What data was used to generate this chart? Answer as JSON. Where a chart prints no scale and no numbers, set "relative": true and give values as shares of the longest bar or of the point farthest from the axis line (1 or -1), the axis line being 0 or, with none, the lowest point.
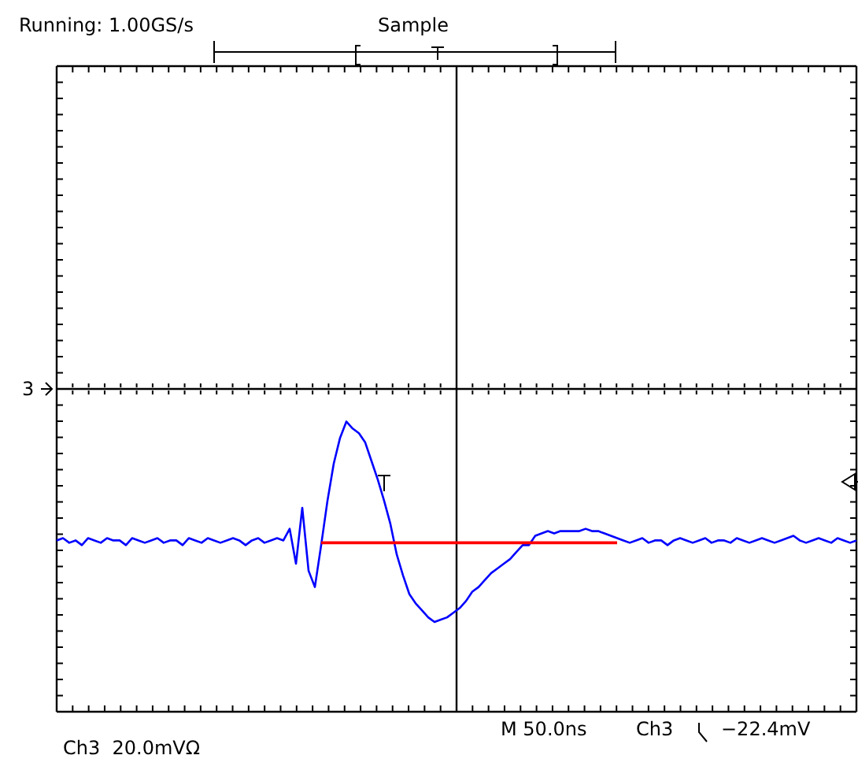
{
  "chart_data": {
    "type": "line",
    "title": "Running: 1.00GS/s",
    "subtitle": "Sample",
    "relative": true,
    "grid": true,
    "marker": "none",
    "line_style": "solid",
    "annotations": [
      "Ch3  20.0mVΩ",
      "M 50.0ns",
      "Ch3",
      "−22.4mV",
      "3"
    ],
    "categories": [
      null,
      null,
      null,
      null,
      null,
      null,
      null,
      null,
      null,
      null,
      null,
      null,
      null,
      null,
      null,
      null,
      null,
      null,
      null,
      null,
      null,
      null,
      null,
      null,
      null,
      null,
      null,
      null,
      null,
      null,
      null,
      null,
      null,
      null,
      null,
      null,
      null,
      null,
      null,
      null,
      null,
      null,
      null,
      null,
      null,
      null,
      null,
      null,
      null,
      null,
      null,
      null,
      null,
      null,
      null,
      null,
      null,
      null,
      null,
      null,
      null,
      null,
      null,
      null,
      null,
      null,
      null,
      null,
      null,
      null,
      null,
      null,
      null,
      null,
      null,
      null,
      null,
      null,
      null,
      null,
      null,
      null,
      null,
      null,
      null,
      null,
      null,
      null,
      null,
      null,
      null,
      null,
      null,
      null,
      null,
      null,
      null,
      null,
      null,
      null,
      null,
      null,
      null,
      null,
      null,
      null,
      null,
      null,
      null,
      null,
      null,
      null,
      null,
      null,
      null,
      null,
      null,
      null,
      null,
      null,
      null,
      null,
      null,
      null,
      null,
      null,
      null,
      null
    ],
    "series": [
      {
        "color": "#0000ff",
        "values": [
          -0.65,
          -0.64,
          -0.66,
          -0.65,
          -0.67,
          -0.64,
          -0.65,
          -0.66,
          -0.64,
          -0.65,
          -0.65,
          -0.67,
          -0.64,
          -0.65,
          -0.66,
          -0.65,
          -0.64,
          -0.66,
          -0.65,
          -0.65,
          -0.67,
          -0.64,
          -0.65,
          -0.66,
          -0.64,
          -0.65,
          -0.66,
          -0.65,
          -0.64,
          -0.65,
          -0.67,
          -0.65,
          -0.64,
          -0.66,
          -0.65,
          -0.64,
          -0.65,
          -0.6,
          -0.75,
          -0.51,
          -0.78,
          -0.85,
          -0.67,
          -0.48,
          -0.32,
          -0.21,
          -0.14,
          -0.17,
          -0.19,
          -0.23,
          -0.31,
          -0.39,
          -0.48,
          -0.58,
          -0.71,
          -0.8,
          -0.88,
          -0.92,
          -0.95,
          -0.98,
          -1.0,
          -0.99,
          -0.98,
          -0.96,
          -0.94,
          -0.91,
          -0.87,
          -0.85,
          -0.82,
          -0.79,
          -0.77,
          -0.75,
          -0.73,
          -0.7,
          -0.67,
          -0.67,
          -0.63,
          -0.62,
          -0.61,
          -0.62,
          -0.61,
          -0.61,
          -0.61,
          -0.61,
          -0.6,
          -0.61,
          -0.61,
          -0.62,
          -0.63,
          -0.64,
          -0.65,
          -0.66,
          -0.65,
          -0.64,
          -0.66,
          -0.65,
          -0.65,
          -0.67,
          -0.65,
          -0.64,
          -0.65,
          -0.66,
          -0.65,
          -0.64,
          -0.66,
          -0.65,
          -0.65,
          -0.66,
          -0.64,
          -0.65,
          -0.66,
          -0.65,
          -0.64,
          -0.65,
          -0.66,
          -0.65,
          -0.64,
          -0.63,
          -0.65,
          -0.66,
          -0.65,
          -0.64,
          -0.65,
          -0.66,
          -0.64,
          -0.65,
          -0.66,
          -0.65
        ]
      },
      {
        "color": "#ff0000",
        "values": [
          null,
          null,
          null,
          null,
          null,
          null,
          null,
          null,
          null,
          null,
          null,
          null,
          null,
          null,
          null,
          null,
          null,
          null,
          null,
          null,
          null,
          null,
          null,
          null,
          null,
          null,
          null,
          null,
          null,
          null,
          null,
          null,
          null,
          null,
          null,
          null,
          null,
          null,
          null,
          null,
          null,
          null,
          -0.66,
          -0.66,
          -0.66,
          -0.66,
          -0.66,
          -0.66,
          -0.66,
          -0.66,
          -0.66,
          -0.66,
          -0.66,
          -0.66,
          -0.66,
          -0.66,
          -0.66,
          -0.66,
          -0.66,
          -0.66,
          -0.66,
          -0.66,
          -0.66,
          -0.66,
          -0.66,
          -0.66,
          -0.66,
          -0.66,
          -0.66,
          -0.66,
          -0.66,
          -0.66,
          -0.66,
          -0.66,
          -0.66,
          -0.66,
          -0.66,
          -0.66,
          -0.66,
          -0.66,
          -0.66,
          -0.66,
          -0.66,
          -0.66,
          -0.66,
          -0.66,
          -0.66,
          -0.66,
          -0.66,
          -0.66,
          null,
          null,
          null,
          null,
          null,
          null,
          null,
          null,
          null,
          null,
          null,
          null,
          null,
          null,
          null,
          null,
          null,
          null,
          null,
          null,
          null,
          null,
          null,
          null,
          null,
          null,
          null,
          null,
          null,
          null,
          null,
          null,
          null,
          null,
          null,
          null,
          null,
          null
        ]
      }
    ]
  }
}
